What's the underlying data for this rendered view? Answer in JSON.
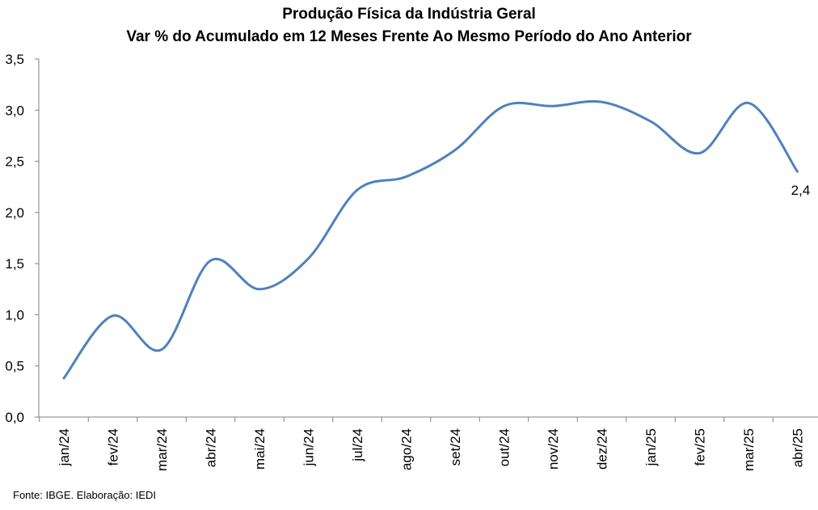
{
  "title": {
    "line1": "Produção Física da Indústria Geral",
    "line2": "Var % do Acumulado em 12 Meses Frente Ao Mesmo Período do Ano Anterior"
  },
  "source": "Fonte: IBGE. Elaboração: IEDI",
  "colors": {
    "series_line": "#4F81BD",
    "axis": "#808080",
    "text": "#000000"
  },
  "chart_data": {
    "type": "line",
    "title": "Produção Física da Indústria Geral — Var % do Acumulado em 12 Meses Frente Ao Mesmo Período do Ano Anterior",
    "xlabel": "",
    "ylabel": "",
    "categories": [
      "jan/24",
      "fev/24",
      "mar/24",
      "abr/24",
      "mai/24",
      "jun/24",
      "jul/24",
      "ago/24",
      "set/24",
      "out/24",
      "nov/24",
      "dez/24",
      "jan/25",
      "fev/25",
      "mar/25",
      "abr/25"
    ],
    "series": [
      {
        "name": "",
        "values": [
          0.38,
          0.99,
          0.66,
          1.53,
          1.25,
          1.55,
          2.22,
          2.35,
          2.61,
          3.04,
          3.04,
          3.08,
          2.89,
          2.58,
          3.07,
          2.4
        ]
      }
    ],
    "ylim": [
      0,
      3.5
    ],
    "y_ticks": [
      0,
      0.5,
      1.0,
      1.5,
      2.0,
      2.5,
      3.0,
      3.5
    ],
    "y_tick_labels": [
      "0,0",
      "0,5",
      "1,0",
      "1,5",
      "2,0",
      "2,5",
      "3,0",
      "3,5"
    ],
    "grid": false,
    "legend": "none",
    "smooth": true,
    "annotations": [
      {
        "category": "abr/25",
        "text": "2,4"
      }
    ]
  }
}
